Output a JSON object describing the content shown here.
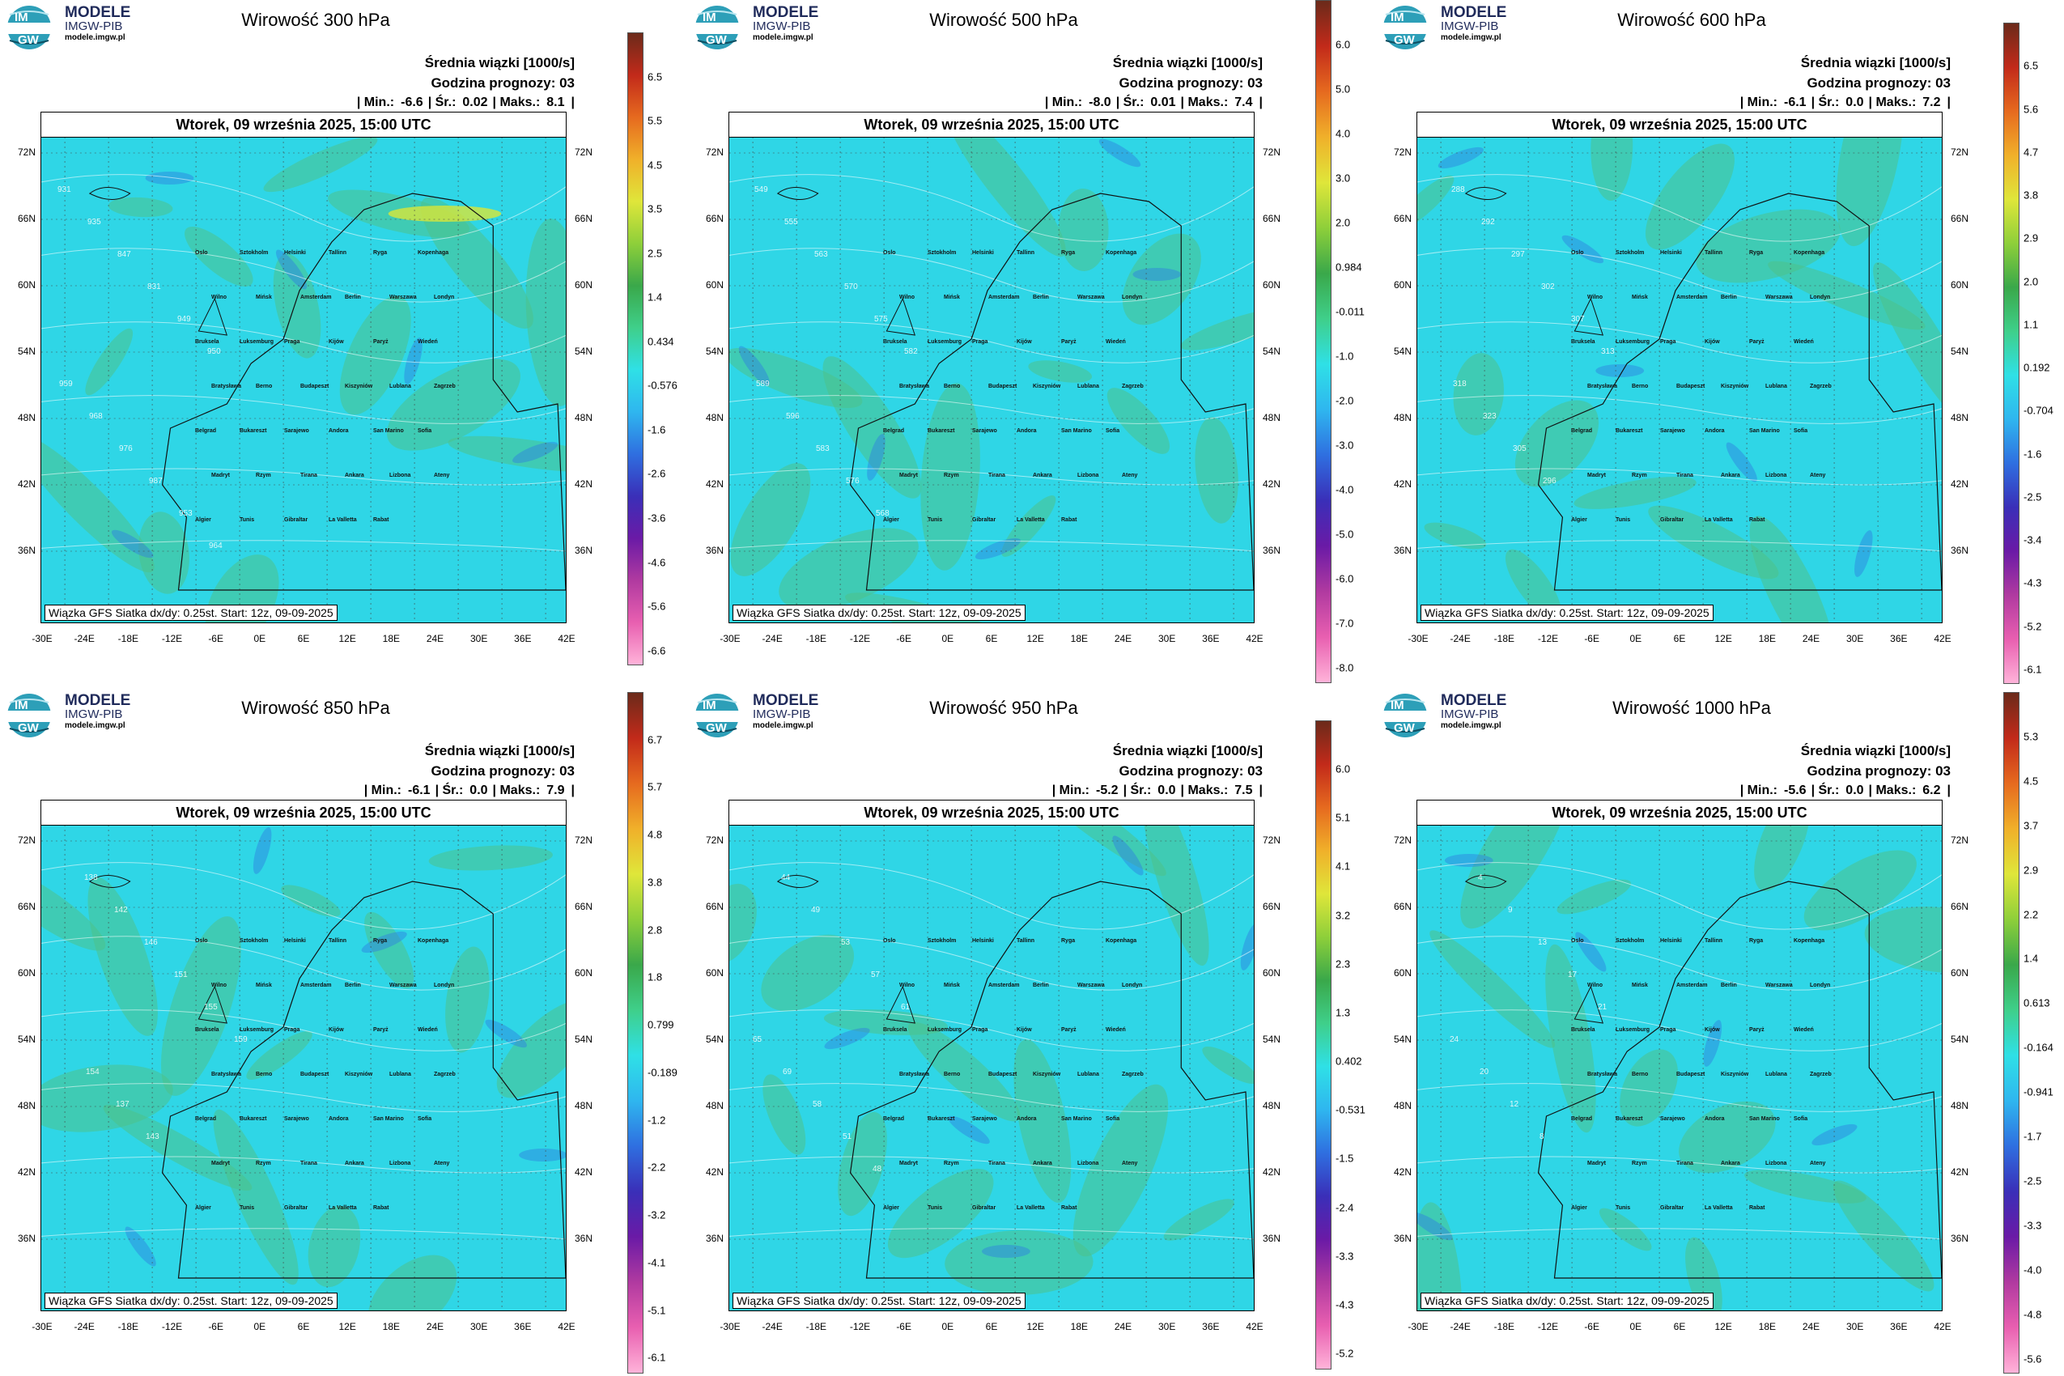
{
  "brand": {
    "line1": "MODELE",
    "line2": "IMGW-PIB",
    "line3": "modele.imgw.pl",
    "logo_text_top": "IM",
    "logo_text_bottom": "GW"
  },
  "common": {
    "mean_label": "Średnia wiązki [1000/s]",
    "forecast_label": "Godzina prognozy: 03",
    "date_label": "Wtorek, 09 września 2025, 15:00 UTC",
    "source_label": "Wiązka GFS Siatka dx/dy: 0.25st. Start: 12z, 09-09-2025",
    "min_label": "| Min.:",
    "avg_label": "| Śr.:",
    "max_label": "| Maks.:",
    "lat_labels": [
      "72N",
      "66N",
      "60N",
      "54N",
      "48N",
      "42N",
      "36N"
    ],
    "lon_labels": [
      "-30E",
      "-24E",
      "-18E",
      "-12E",
      "-6E",
      "0E",
      "6E",
      "12E",
      "18E",
      "24E",
      "30E",
      "36E",
      "42E"
    ],
    "cities": [
      "Oslo",
      "Sztokholm",
      "Helsinki",
      "Tallinn",
      "Ryga",
      "Kopenhaga",
      "Wilno",
      "Mińsk",
      "Amsterdam",
      "Berlin",
      "Warszawa",
      "Londyn",
      "Bruksela",
      "Luksemburg",
      "Praga",
      "Kijów",
      "Paryż",
      "Wiedeń",
      "Bratysława",
      "Berno",
      "Budapeszt",
      "Kiszyniów",
      "Lublana",
      "Zagrzeb",
      "Belgrad",
      "Bukareszt",
      "Sarajewo",
      "Andora",
      "San Marino",
      "Sofia",
      "Madryt",
      "Rzym",
      "Tirana",
      "Ankara",
      "Lizbona",
      "Ateny",
      "Algier",
      "Tunis",
      "Gibraltar",
      "La Valletta",
      "Rabat"
    ],
    "colors": {
      "field_base": "#2fd6e6",
      "field_green": "#4cc28a",
      "field_yellow": "#d8e63a",
      "field_blue": "#2f7fe0",
      "contour": "#ffffff"
    }
  },
  "panels": [
    {
      "title": "Wirowość 300 hPa",
      "min": "-6.6",
      "avg": "0.02",
      "max": "8.1",
      "colorbar_ticks": [
        "6.5",
        "5.5",
        "4.5",
        "3.5",
        "2.5",
        "1.4",
        "0.434",
        "-0.576",
        "-1.6",
        "-2.6",
        "-3.6",
        "-4.6",
        "-5.6",
        "-6.6"
      ],
      "contour_labels": [
        "931",
        "935",
        "847",
        "831",
        "949",
        "950",
        "959",
        "968",
        "976",
        "987",
        "953",
        "964"
      ]
    },
    {
      "title": "Wirowość 500 hPa",
      "min": "-8.0",
      "avg": "0.01",
      "max": "7.4",
      "colorbar_ticks": [
        "6.0",
        "5.0",
        "4.0",
        "3.0",
        "2.0",
        "0.984",
        "-0.011",
        "-1.0",
        "-2.0",
        "-3.0",
        "-4.0",
        "-5.0",
        "-6.0",
        "-7.0",
        "-8.0"
      ],
      "contour_labels": [
        "549",
        "555",
        "563",
        "570",
        "575",
        "582",
        "589",
        "596",
        "583",
        "576",
        "568"
      ]
    },
    {
      "title": "Wirowość 600 hPa",
      "min": "-6.1",
      "avg": "0.0",
      "max": "7.2",
      "colorbar_ticks": [
        "6.5",
        "5.6",
        "4.7",
        "3.8",
        "2.9",
        "2.0",
        "1.1",
        "0.192",
        "-0.704",
        "-1.6",
        "-2.5",
        "-3.4",
        "-4.3",
        "-5.2",
        "-6.1"
      ],
      "contour_labels": [
        "288",
        "292",
        "297",
        "302",
        "307",
        "313",
        "318",
        "323",
        "305",
        "296"
      ]
    },
    {
      "title": "Wirowość 850 hPa",
      "min": "-6.1",
      "avg": "0.0",
      "max": "7.9",
      "colorbar_ticks": [
        "6.7",
        "5.7",
        "4.8",
        "3.8",
        "2.8",
        "1.8",
        "0.799",
        "-0.189",
        "-1.2",
        "-2.2",
        "-3.2",
        "-4.1",
        "-5.1",
        "-6.1"
      ],
      "contour_labels": [
        "138",
        "142",
        "146",
        "151",
        "155",
        "159",
        "154",
        "137",
        "143"
      ]
    },
    {
      "title": "Wirowość 950 hPa",
      "min": "-5.2",
      "avg": "0.0",
      "max": "7.5",
      "colorbar_ticks": [
        "6.0",
        "5.1",
        "4.1",
        "3.2",
        "2.3",
        "1.3",
        "0.402",
        "-0.531",
        "-1.5",
        "-2.4",
        "-3.3",
        "-4.3",
        "-5.2"
      ],
      "contour_labels": [
        "44",
        "49",
        "53",
        "57",
        "61",
        "65",
        "69",
        "58",
        "51",
        "48"
      ]
    },
    {
      "title": "Wirowość 1000 hPa",
      "min": "-5.6",
      "avg": "0.0",
      "max": "6.2",
      "colorbar_ticks": [
        "5.3",
        "4.5",
        "3.7",
        "2.9",
        "2.2",
        "1.4",
        "0.613",
        "-0.164",
        "-0.941",
        "-1.7",
        "-2.5",
        "-3.3",
        "-4.0",
        "-4.8",
        "-5.6"
      ],
      "contour_labels": [
        "4",
        "9",
        "13",
        "17",
        "21",
        "24",
        "20",
        "12",
        "8"
      ]
    }
  ]
}
